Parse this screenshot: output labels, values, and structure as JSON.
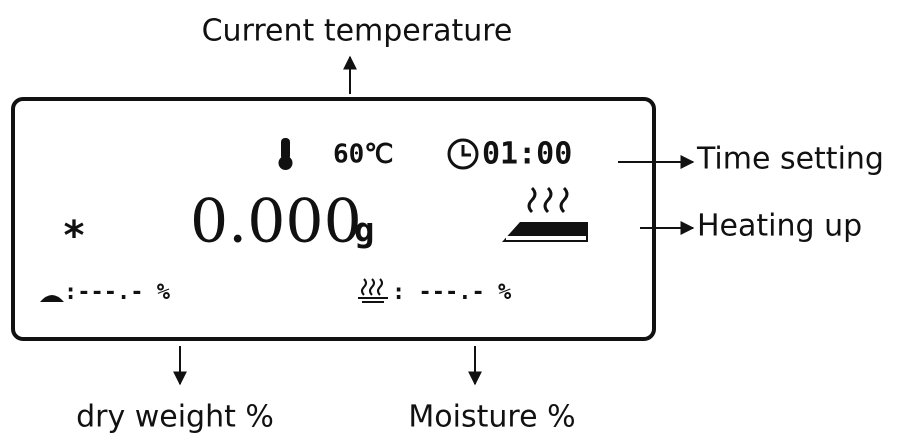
{
  "annotations": {
    "current_temperature": "Current temperature",
    "time_setting": "Time setting",
    "heating_up": "Heating up",
    "dry_weight": "dry weight %",
    "moisture": "Moisture %"
  },
  "display": {
    "temperature": "60℃",
    "time": "01:00",
    "star": "*",
    "weight": "0.000",
    "unit": "g",
    "dry_weight": ":---.- %",
    "moisture": ": ---.- %"
  }
}
